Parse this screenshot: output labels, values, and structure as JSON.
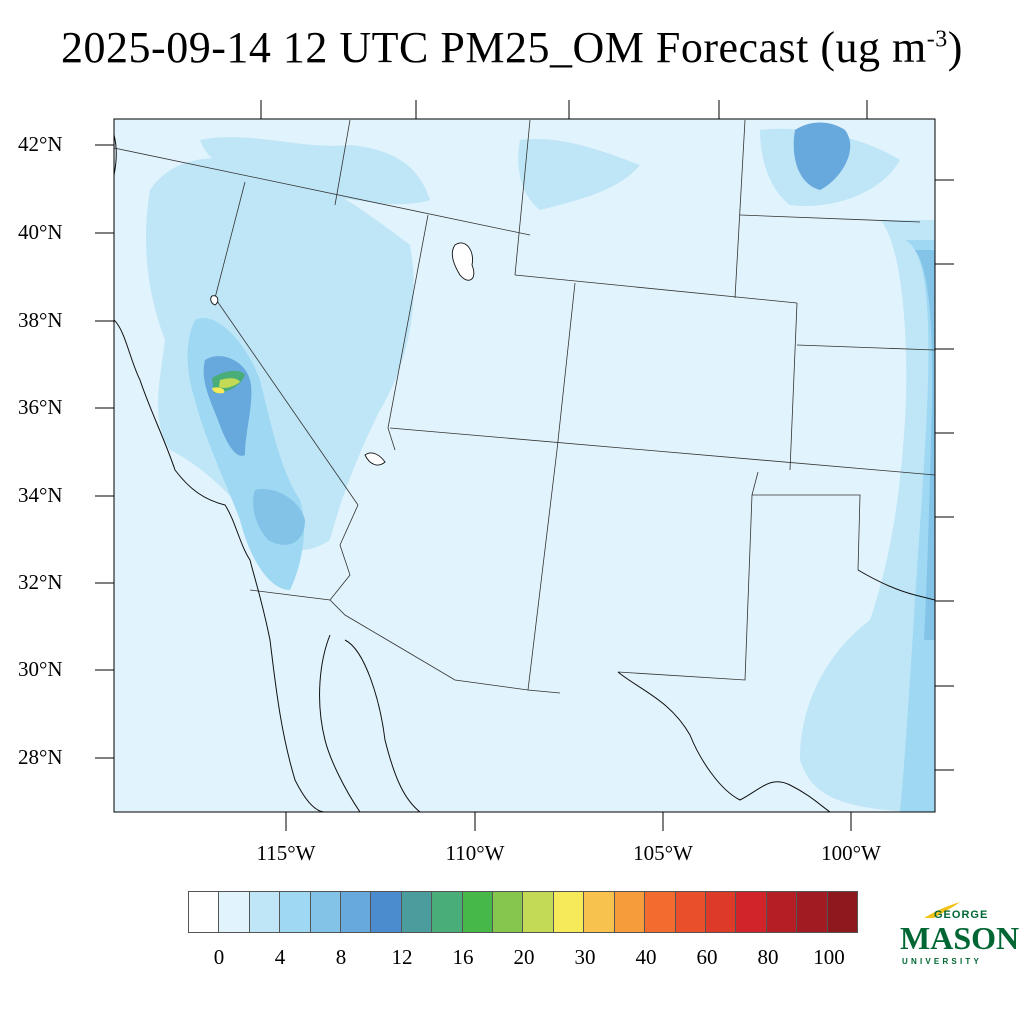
{
  "title": {
    "main": "2025-09-14 12 UTC PM25_OM Forecast (ug m",
    "exponent": "-3",
    "close": ")"
  },
  "latitude_labels": [
    "42°N",
    "40°N",
    "38°N",
    "36°N",
    "34°N",
    "32°N",
    "30°N",
    "28°N"
  ],
  "longitude_labels": [
    "115°W",
    "110°W",
    "105°W",
    "100°W"
  ],
  "colorbar": {
    "colors": [
      "#ffffff",
      "#e1f3fc",
      "#bfe6f7",
      "#9fd8f3",
      "#83c3e8",
      "#67a8dd",
      "#4a8ccd",
      "#4a9d9c",
      "#48ad79",
      "#46b84a",
      "#86c54e",
      "#c2da55",
      "#f6e95a",
      "#f7c24e",
      "#f69c3b",
      "#f36b2e",
      "#ea4f2b",
      "#de3a2a",
      "#d0232a",
      "#b61e26",
      "#a11c22",
      "#8d181d"
    ],
    "labels": [
      "0",
      "4",
      "8",
      "12",
      "16",
      "20",
      "30",
      "40",
      "60",
      "80",
      "100"
    ]
  },
  "logo": {
    "line1": "GEORGE",
    "line2": "MASON",
    "line3": "UNIVERSITY",
    "color": "#006633"
  }
}
